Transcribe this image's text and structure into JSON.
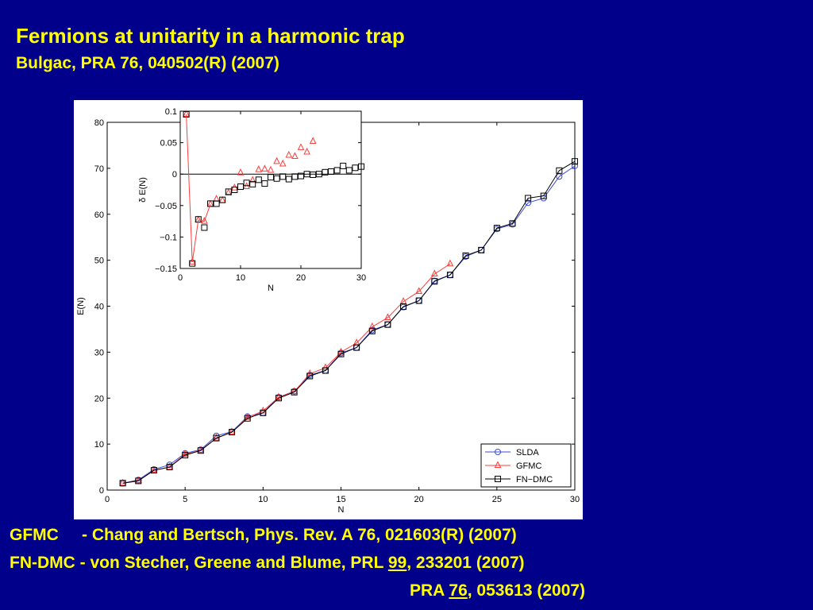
{
  "slide": {
    "title": "Fermions at unitarity in a harmonic trap",
    "subtitle": "Bulgac, PRA  76, 040502(R) (2007)"
  },
  "references": {
    "line1": "GFMC     - Chang and Bertsch, Phys. Rev. A 76, 021603(R) (2007)",
    "line2_pre": "FN-DMC - von Stecher, Greene and Blume, PRL ",
    "line2_vol": "99",
    "line2_post": ", 233201 (2007)",
    "line3_pre": "PRA ",
    "line3_vol": "76",
    "line3_post": ", 053613 (2007)"
  },
  "colors": {
    "background": "#00008b",
    "text": "#ffff00",
    "slda": "#3b4bd8",
    "gfmc": "#ff3b3b",
    "fndmc": "#000000"
  },
  "chart_data": [
    {
      "type": "line",
      "xlabel": "N",
      "ylabel": "E(N)",
      "xlim": [
        0,
        30
      ],
      "ylim": [
        0,
        80
      ],
      "xticks": [
        0,
        5,
        10,
        15,
        20,
        25,
        30
      ],
      "yticks": [
        0,
        10,
        20,
        30,
        40,
        50,
        60,
        70,
        80
      ],
      "legend_position": "bottom-right",
      "series": [
        {
          "name": "SLDA",
          "marker": "circle",
          "color": "#3b4bd8",
          "x": [
            1,
            2,
            3,
            4,
            5,
            6,
            7,
            8,
            9,
            10,
            11,
            12,
            13,
            14,
            15,
            16,
            17,
            18,
            19,
            20,
            21,
            22,
            23,
            24,
            25,
            26,
            27,
            28,
            29,
            30
          ],
          "y": [
            1.5,
            2.2,
            4.5,
            5.5,
            8.0,
            8.8,
            11.8,
            12.7,
            16.0,
            16.8,
            20.2,
            21.5,
            25.0,
            26.0,
            29.8,
            31.0,
            34.8,
            36.0,
            39.8,
            41.2,
            45.5,
            46.8,
            50.8,
            52.2,
            56.8,
            57.8,
            62.5,
            63.5,
            68.2,
            70.5
          ]
        },
        {
          "name": "GFMC",
          "marker": "triangle",
          "color": "#ff3b3b",
          "x": [
            1,
            2,
            3,
            4,
            5,
            6,
            7,
            8,
            9,
            10,
            11,
            12,
            13,
            14,
            15,
            16,
            17,
            18,
            19,
            20,
            21,
            22
          ],
          "y": [
            1.5,
            2.0,
            4.3,
            5.0,
            7.8,
            8.6,
            11.3,
            12.6,
            15.8,
            17.2,
            20.2,
            21.4,
            25.3,
            26.6,
            30.0,
            32.0,
            35.5,
            37.5,
            41.0,
            43.2,
            47.0,
            49.2
          ]
        },
        {
          "name": "FN−DMC",
          "marker": "square",
          "color": "#000000",
          "x": [
            1,
            2,
            3,
            4,
            5,
            6,
            7,
            8,
            9,
            10,
            11,
            12,
            13,
            14,
            15,
            16,
            17,
            18,
            19,
            20,
            21,
            22,
            23,
            24,
            25,
            26,
            27,
            28,
            29,
            30
          ],
          "y": [
            1.5,
            2.0,
            4.3,
            5.0,
            7.6,
            8.6,
            11.3,
            12.6,
            15.6,
            16.8,
            20.0,
            21.3,
            24.8,
            26.0,
            29.6,
            31.0,
            34.6,
            36.0,
            39.9,
            41.2,
            45.4,
            46.8,
            51.0,
            52.2,
            57.0,
            58.0,
            63.5,
            64.0,
            69.5,
            71.5
          ]
        }
      ]
    },
    {
      "type": "line",
      "xlabel": "N",
      "ylabel": "δ E(N)",
      "xlim": [
        0,
        30
      ],
      "ylim": [
        -0.15,
        0.1
      ],
      "xticks": [
        0,
        10,
        20,
        30
      ],
      "yticks": [
        -0.15,
        -0.1,
        -0.05,
        0,
        0.05,
        0.1
      ],
      "ytick_labels": [
        "−0.15",
        "−0.1",
        "−0.05",
        "0",
        "0.05",
        "0.1"
      ],
      "zero_line": true,
      "series": [
        {
          "name": "GFMC",
          "marker": "triangle",
          "color": "#ff3b3b",
          "x": [
            1,
            2,
            3,
            4,
            5,
            6,
            7,
            8,
            9,
            10,
            11,
            12,
            13,
            14,
            15,
            16,
            17,
            18,
            19,
            20,
            21,
            22
          ],
          "y": [
            0.095,
            -0.14,
            -0.073,
            -0.075,
            -0.048,
            -0.04,
            -0.042,
            -0.03,
            -0.022,
            0.002,
            -0.02,
            -0.01,
            0.007,
            0.008,
            0.006,
            0.02,
            0.016,
            0.03,
            0.028,
            0.042,
            0.035,
            0.052
          ]
        },
        {
          "name": "FN−DMC",
          "marker": "square",
          "color": "#000000",
          "x": [
            1,
            2,
            3,
            4,
            5,
            6,
            7,
            8,
            9,
            10,
            11,
            12,
            13,
            14,
            15,
            16,
            17,
            18,
            19,
            20,
            21,
            22,
            23,
            24,
            25,
            26,
            27,
            28,
            29,
            30
          ],
          "y": [
            0.095,
            -0.142,
            -0.072,
            -0.085,
            -0.047,
            -0.047,
            -0.041,
            -0.028,
            -0.025,
            -0.02,
            -0.014,
            -0.016,
            -0.009,
            -0.015,
            -0.005,
            -0.007,
            -0.004,
            -0.008,
            -0.004,
            -0.003,
            0.0,
            -0.001,
            0.0,
            0.003,
            0.004,
            0.006,
            0.013,
            0.006,
            0.01,
            0.012
          ]
        }
      ]
    }
  ]
}
